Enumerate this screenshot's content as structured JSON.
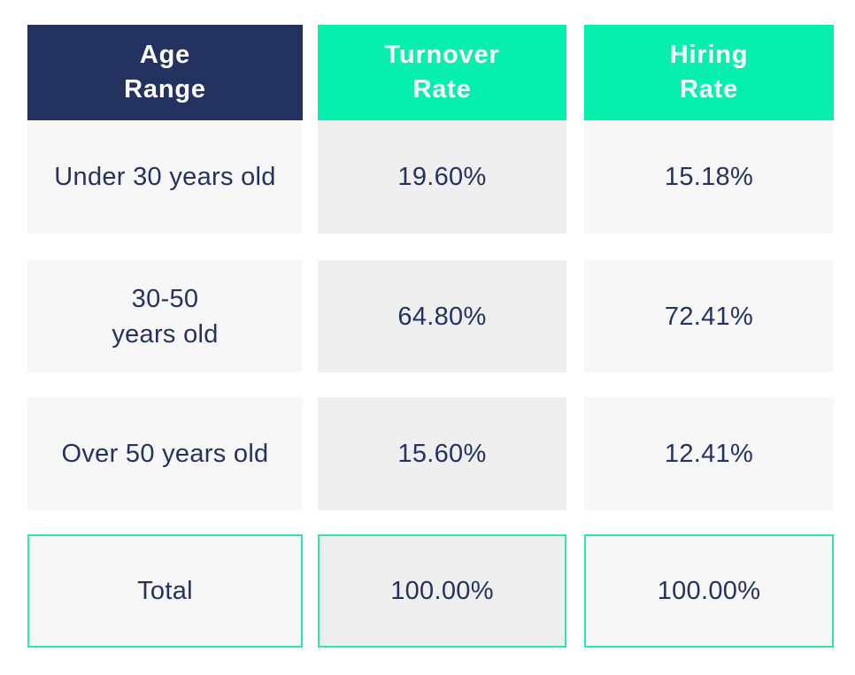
{
  "table": {
    "headers": [
      {
        "line1": "Age",
        "line2": "Range"
      },
      {
        "line1": "Turnover",
        "line2": "Rate"
      },
      {
        "line1": "Hiring",
        "line2": "Rate"
      }
    ],
    "rows": [
      {
        "age_range": "Under 30 years old",
        "age_range_line1": "",
        "age_range_line2": "",
        "turnover_rate": "19.60%",
        "hiring_rate": "15.18%"
      },
      {
        "age_range": "",
        "age_range_line1": "30-50",
        "age_range_line2": "years old",
        "turnover_rate": "64.80%",
        "hiring_rate": "72.41%"
      },
      {
        "age_range": "Over 50 years old",
        "age_range_line1": "",
        "age_range_line2": "",
        "turnover_rate": "15.60%",
        "hiring_rate": "12.41%"
      }
    ],
    "total": {
      "label": "Total",
      "turnover_rate": "100.00%",
      "hiring_rate": "100.00%"
    }
  },
  "colors": {
    "header_dark": "#24325f",
    "header_accent": "#07efae",
    "text": "#24325f",
    "total_border": "#2ae6b1",
    "cell_light": "#f7f7f7",
    "cell_mid": "#efefef"
  }
}
